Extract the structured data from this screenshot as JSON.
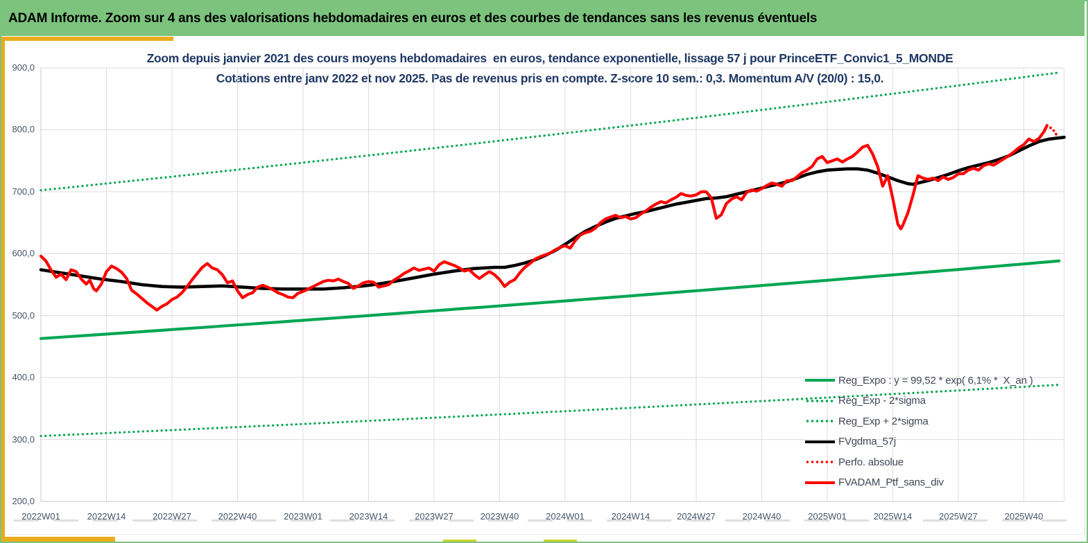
{
  "header": {
    "title": "ADAM Informe. Zoom sur 4 ans des valorisations hebdomadaires en euros et des courbes de tendances sans les revenus éventuels"
  },
  "colors": {
    "header_bg": "#7cc47e",
    "frame_green": "#7cc47e",
    "amber_accent": "#eaac1c",
    "sheet_tab_olive": "#cbd32b",
    "green_line": "#00a651",
    "red_line": "#fe0000",
    "black_line": "#000000",
    "gridline": "#dcdcdc",
    "axis_line": "#c9c9c9",
    "tick_text": "#44546a",
    "title_text": "#1f3864",
    "legend_text": "#404656"
  },
  "chart_data": {
    "type": "line",
    "title": "Zoom depuis janvier 2021 des cours moyens hebdomadaires  en euros, tendance exponentielle, lissage 57 j pour PrinceETF_Convic1_5_MONDE",
    "subtitle": "Cotations entre janv 2022 et nov 2025. Pas de revenus pris en compte. Z-score 10 sem.: 0,3. Momentum A/V (20/0) : 15,0.",
    "x_axis": {
      "labels": [
        "2022W01",
        "2022W14",
        "2022W27",
        "2022W40",
        "2023W01",
        "2023W14",
        "2023W27",
        "2023W40",
        "2024W01",
        "2024W14",
        "2024W27",
        "2024W40",
        "2025W01",
        "2025W14",
        "2025W27",
        "2025W40"
      ],
      "weeks_between_labels": 13,
      "total_weeks": 203
    },
    "y_axis": {
      "min": 200,
      "max": 900,
      "step": 100,
      "tick_labels": [
        "900,0",
        "800,0",
        "700,0",
        "600,0",
        "500,0",
        "400,0",
        "300,0",
        "200,0"
      ],
      "grid": true
    },
    "legend_position": "inside-bottom-right",
    "series": [
      {
        "name": "Reg_Expo : y = 99,52 * exp( 6,1% *  X_an )",
        "type": "line",
        "color_key": "green_line",
        "line": "solid",
        "source": "exponential",
        "start_value": 463,
        "end_value": 589,
        "factor": 1.0
      },
      {
        "name": "Reg_Exp - 2*sigma",
        "type": "line",
        "color_key": "green_line",
        "line": "dotted",
        "source": "exponential",
        "start_value": 463,
        "end_value": 589,
        "factor": 0.66
      },
      {
        "name": "Reg_Exp + 2*sigma",
        "type": "line",
        "color_key": "green_line",
        "line": "dotted",
        "source": "exponential",
        "start_value": 463,
        "end_value": 589,
        "factor": 1.517
      },
      {
        "name": "FVgdma_57j",
        "type": "line",
        "color_key": "black_line",
        "line": "solid",
        "source": "points",
        "points": [
          [
            0,
            574
          ],
          [
            4,
            569
          ],
          [
            8,
            564
          ],
          [
            12,
            559
          ],
          [
            16,
            555
          ],
          [
            20,
            550
          ],
          [
            24,
            547
          ],
          [
            28,
            546
          ],
          [
            32,
            547
          ],
          [
            36,
            548
          ],
          [
            40,
            546
          ],
          [
            44,
            544
          ],
          [
            48,
            543
          ],
          [
            52,
            543
          ],
          [
            56,
            543
          ],
          [
            60,
            545
          ],
          [
            64,
            548
          ],
          [
            66,
            550
          ],
          [
            70,
            555
          ],
          [
            74,
            561
          ],
          [
            78,
            567
          ],
          [
            82,
            572
          ],
          [
            86,
            576
          ],
          [
            90,
            578
          ],
          [
            92,
            578
          ],
          [
            94,
            581
          ],
          [
            96,
            585
          ],
          [
            98,
            590
          ],
          [
            100,
            597
          ],
          [
            102,
            605
          ],
          [
            104,
            615
          ],
          [
            106,
            626
          ],
          [
            108,
            636
          ],
          [
            110,
            644
          ],
          [
            112,
            651
          ],
          [
            114,
            657
          ],
          [
            116,
            661
          ],
          [
            118,
            665
          ],
          [
            120,
            668
          ],
          [
            122,
            672
          ],
          [
            124,
            676
          ],
          [
            126,
            680
          ],
          [
            128,
            683
          ],
          [
            130,
            686
          ],
          [
            132,
            689
          ],
          [
            134,
            690
          ],
          [
            136,
            692
          ],
          [
            138,
            696
          ],
          [
            140,
            700
          ],
          [
            142,
            704
          ],
          [
            144,
            708
          ],
          [
            146,
            712
          ],
          [
            148,
            716
          ],
          [
            150,
            722
          ],
          [
            152,
            728
          ],
          [
            154,
            732
          ],
          [
            156,
            735
          ],
          [
            158,
            736
          ],
          [
            160,
            737
          ],
          [
            162,
            737
          ],
          [
            164,
            735
          ],
          [
            166,
            730
          ],
          [
            168,
            724
          ],
          [
            170,
            718
          ],
          [
            172,
            713
          ],
          [
            173,
            712
          ],
          [
            174,
            714
          ],
          [
            176,
            718
          ],
          [
            178,
            723
          ],
          [
            180,
            728
          ],
          [
            182,
            734
          ],
          [
            184,
            739
          ],
          [
            186,
            743
          ],
          [
            188,
            747
          ],
          [
            190,
            752
          ],
          [
            192,
            758
          ],
          [
            194,
            766
          ],
          [
            196,
            774
          ],
          [
            198,
            781
          ],
          [
            200,
            785
          ],
          [
            202,
            787
          ],
          [
            203,
            788
          ]
        ]
      },
      {
        "name": "Perfo. absolue",
        "type": "line",
        "color_key": "red_line",
        "line": "dotted",
        "source": "points",
        "points": [
          [
            199.6,
            807
          ],
          [
            200.2,
            804
          ],
          [
            200.8,
            800
          ],
          [
            201.4,
            793
          ],
          [
            202.1,
            790
          ]
        ]
      },
      {
        "name": "FVADAM_Ptf_sans_div",
        "type": "line",
        "color_key": "red_line",
        "line": "solid",
        "source": "points",
        "points": [
          [
            0,
            596
          ],
          [
            1,
            588
          ],
          [
            2,
            574
          ],
          [
            3,
            562
          ],
          [
            4,
            567
          ],
          [
            5,
            558
          ],
          [
            6,
            574
          ],
          [
            7,
            571
          ],
          [
            8,
            559
          ],
          [
            9,
            551
          ],
          [
            9.7,
            557
          ],
          [
            10.5,
            543
          ],
          [
            11,
            540
          ],
          [
            12,
            551
          ],
          [
            13,
            571
          ],
          [
            14,
            580
          ],
          [
            15,
            576
          ],
          [
            16,
            570
          ],
          [
            17,
            560
          ],
          [
            18,
            541
          ],
          [
            19,
            535
          ],
          [
            20,
            528
          ],
          [
            21,
            521
          ],
          [
            22,
            515
          ],
          [
            23,
            509
          ],
          [
            24,
            515
          ],
          [
            25,
            519
          ],
          [
            26,
            526
          ],
          [
            27,
            530
          ],
          [
            28,
            537
          ],
          [
            29,
            547
          ],
          [
            30,
            558
          ],
          [
            31,
            568
          ],
          [
            32,
            578
          ],
          [
            33,
            584
          ],
          [
            34,
            577
          ],
          [
            35,
            574
          ],
          [
            36,
            566
          ],
          [
            37,
            553
          ],
          [
            38,
            556
          ],
          [
            39,
            540
          ],
          [
            40,
            529
          ],
          [
            41,
            534
          ],
          [
            42,
            537
          ],
          [
            43,
            546
          ],
          [
            44,
            549
          ],
          [
            45,
            546
          ],
          [
            46,
            542
          ],
          [
            47,
            537
          ],
          [
            48,
            534
          ],
          [
            49,
            530
          ],
          [
            50,
            529
          ],
          [
            51,
            536
          ],
          [
            52,
            539
          ],
          [
            53,
            543
          ],
          [
            54,
            547
          ],
          [
            55,
            551
          ],
          [
            56,
            555
          ],
          [
            57,
            557
          ],
          [
            58,
            556
          ],
          [
            59,
            559
          ],
          [
            60,
            555
          ],
          [
            61,
            552
          ],
          [
            62,
            544
          ],
          [
            63,
            548
          ],
          [
            64,
            553
          ],
          [
            65,
            555
          ],
          [
            66,
            554
          ],
          [
            67,
            546
          ],
          [
            68,
            548
          ],
          [
            69,
            550
          ],
          [
            70,
            557
          ],
          [
            71,
            562
          ],
          [
            72,
            568
          ],
          [
            73,
            572
          ],
          [
            74,
            577
          ],
          [
            75,
            573
          ],
          [
            76,
            575
          ],
          [
            77,
            577
          ],
          [
            78,
            572
          ],
          [
            79,
            582
          ],
          [
            80,
            587
          ],
          [
            81,
            584
          ],
          [
            82,
            581
          ],
          [
            83,
            577
          ],
          [
            84,
            572
          ],
          [
            85,
            574
          ],
          [
            86,
            566
          ],
          [
            87,
            560
          ],
          [
            88,
            566
          ],
          [
            89,
            571
          ],
          [
            90,
            566
          ],
          [
            91,
            558
          ],
          [
            92,
            547
          ],
          [
            93,
            554
          ],
          [
            94,
            558
          ],
          [
            95,
            569
          ],
          [
            96,
            578
          ],
          [
            97,
            584
          ],
          [
            98,
            591
          ],
          [
            99,
            595
          ],
          [
            100,
            598
          ],
          [
            101,
            601
          ],
          [
            102,
            606
          ],
          [
            103,
            610
          ],
          [
            104,
            613
          ],
          [
            105,
            609
          ],
          [
            106,
            621
          ],
          [
            107,
            630
          ],
          [
            108,
            634
          ],
          [
            109,
            636
          ],
          [
            110,
            641
          ],
          [
            111,
            650
          ],
          [
            112,
            656
          ],
          [
            113,
            659
          ],
          [
            114,
            662
          ],
          [
            115,
            658
          ],
          [
            116,
            660
          ],
          [
            117,
            656
          ],
          [
            118,
            658
          ],
          [
            119,
            664
          ],
          [
            120,
            669
          ],
          [
            121,
            675
          ],
          [
            122,
            680
          ],
          [
            123,
            684
          ],
          [
            124,
            682
          ],
          [
            125,
            687
          ],
          [
            126,
            691
          ],
          [
            127,
            697
          ],
          [
            128,
            694
          ],
          [
            129,
            693
          ],
          [
            130,
            695
          ],
          [
            131,
            700
          ],
          [
            132,
            700
          ],
          [
            133,
            690
          ],
          [
            134,
            657
          ],
          [
            135,
            663
          ],
          [
            136,
            681
          ],
          [
            137,
            688
          ],
          [
            138,
            692
          ],
          [
            139,
            687
          ],
          [
            140,
            699
          ],
          [
            141,
            703
          ],
          [
            142,
            701
          ],
          [
            143,
            705
          ],
          [
            144,
            710
          ],
          [
            145,
            714
          ],
          [
            146,
            712
          ],
          [
            147,
            709
          ],
          [
            148,
            718
          ],
          [
            149,
            718
          ],
          [
            150,
            724
          ],
          [
            151,
            731
          ],
          [
            152,
            735
          ],
          [
            153,
            741
          ],
          [
            154,
            753
          ],
          [
            155,
            757
          ],
          [
            156,
            747
          ],
          [
            157,
            750
          ],
          [
            158,
            753
          ],
          [
            159,
            748
          ],
          [
            160,
            753
          ],
          [
            161,
            757
          ],
          [
            162,
            764
          ],
          [
            163,
            772
          ],
          [
            164,
            775
          ],
          [
            165,
            761
          ],
          [
            166,
            741
          ],
          [
            167,
            709
          ],
          [
            168,
            726
          ],
          [
            169,
            689
          ],
          [
            170,
            648
          ],
          [
            170.6,
            640
          ],
          [
            171,
            646
          ],
          [
            172,
            666
          ],
          [
            173,
            694
          ],
          [
            174,
            726
          ],
          [
            175,
            722
          ],
          [
            176,
            720
          ],
          [
            177,
            722
          ],
          [
            178,
            718
          ],
          [
            179,
            724
          ],
          [
            180,
            720
          ],
          [
            181,
            723
          ],
          [
            182,
            729
          ],
          [
            183,
            729
          ],
          [
            184,
            735
          ],
          [
            185,
            738
          ],
          [
            186,
            735
          ],
          [
            187,
            742
          ],
          [
            188,
            745
          ],
          [
            189,
            743
          ],
          [
            190,
            748
          ],
          [
            191,
            753
          ],
          [
            192,
            758
          ],
          [
            193,
            764
          ],
          [
            194,
            771
          ],
          [
            195,
            776
          ],
          [
            196,
            785
          ],
          [
            197,
            781
          ],
          [
            198,
            786
          ],
          [
            199,
            797
          ],
          [
            199.6,
            807
          ]
        ]
      }
    ]
  }
}
